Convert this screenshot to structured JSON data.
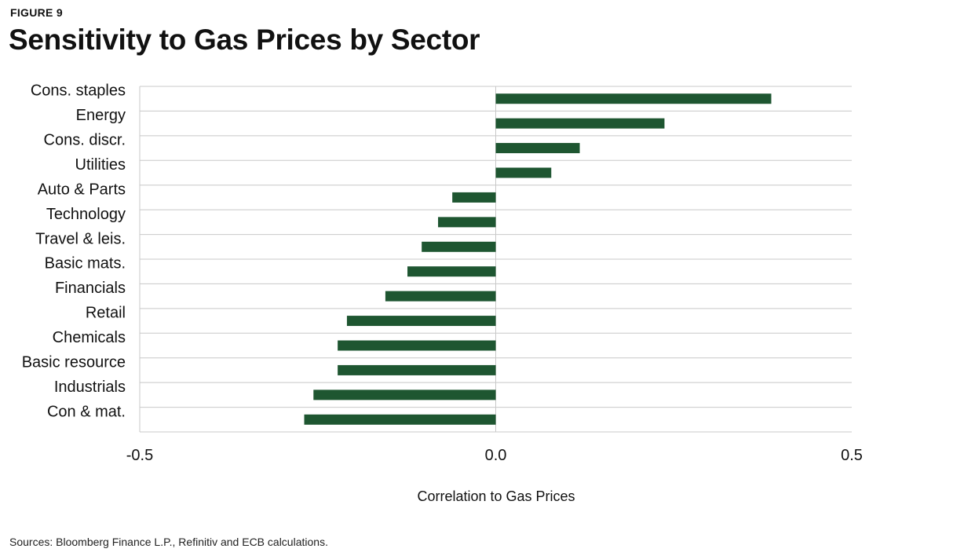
{
  "figure_label": "FIGURE 9",
  "source_note": "Sources: Bloomberg Finance L.P., Refinitiv and ECB calculations.",
  "colors": {
    "bar": "#1e5631",
    "grid": "#c8c8c8",
    "zero_line": "#c8c8c8"
  },
  "chart_data": {
    "type": "bar",
    "orientation": "horizontal",
    "title": "Sensitivity to Gas Prices by Sector",
    "xlabel": "Correlation to Gas Prices",
    "ylabel": "",
    "xlim": [
      -0.5,
      0.5
    ],
    "x_ticks": [
      "-0.5",
      "0.0",
      "0.5"
    ],
    "grid": "horizontal",
    "categories": [
      "Cons. staples",
      "Energy",
      "Cons. discr.",
      "Utilities",
      "Auto & Parts",
      "Technology",
      "Travel & leis.",
      "Basic mats.",
      "Financials",
      "Retail",
      "Chemicals",
      "Basic resource",
      "Industrials",
      "Con & mat."
    ],
    "values": [
      0.387,
      0.237,
      0.118,
      0.078,
      -0.061,
      -0.081,
      -0.104,
      -0.124,
      -0.155,
      -0.209,
      -0.222,
      -0.222,
      -0.256,
      -0.269
    ]
  }
}
